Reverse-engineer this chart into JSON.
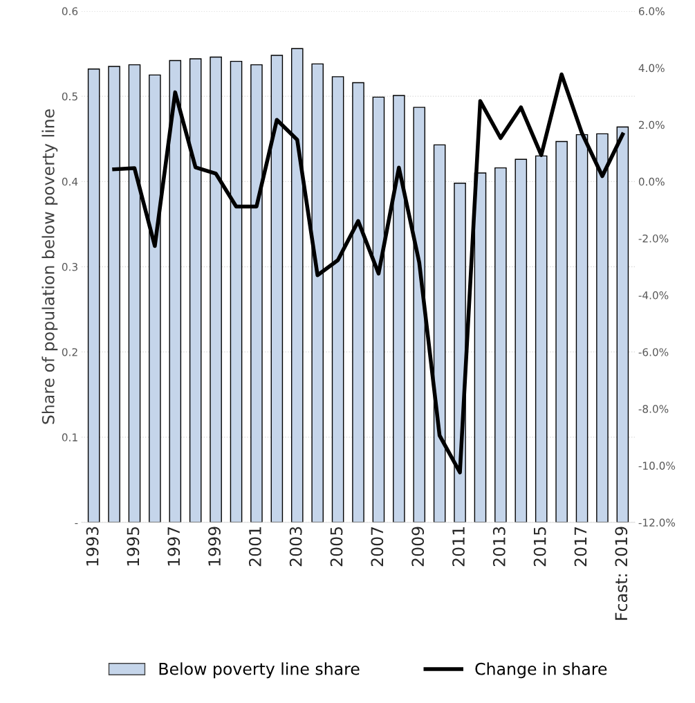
{
  "chart_data": {
    "type": "bar",
    "ylabel": "Share of population below poverty line",
    "categories": [
      "1993",
      null,
      "1995",
      null,
      "1997",
      null,
      "1999",
      null,
      "2001",
      null,
      "2003",
      null,
      "2005",
      null,
      "2007",
      null,
      "2009",
      null,
      "2011",
      null,
      "2013",
      null,
      "2015",
      null,
      "2017",
      null,
      "Fcast: 2019"
    ],
    "series": [
      {
        "name": "Below poverty line share",
        "color": "#c5d5ea",
        "values": [
          0.532,
          0.535,
          0.537,
          0.525,
          0.542,
          0.544,
          0.546,
          0.541,
          0.537,
          0.548,
          0.556,
          0.538,
          0.523,
          0.516,
          0.499,
          0.501,
          0.487,
          0.443,
          0.398,
          0.41,
          0.416,
          0.426,
          0.43,
          0.447,
          0.455,
          0.456,
          0.464
        ]
      },
      {
        "name": "Change in share",
        "type": "line",
        "axis": "y2",
        "color": "#000000",
        "values": [
          null,
          0.43,
          0.47,
          -2.27,
          3.14,
          0.5,
          0.28,
          -0.88,
          -0.88,
          2.17,
          1.47,
          -3.3,
          -2.77,
          -1.39,
          -3.24,
          0.49,
          -2.85,
          -8.94,
          -10.24,
          2.83,
          1.53,
          2.61,
          0.93,
          3.77,
          1.7,
          0.19,
          1.66
        ]
      }
    ],
    "ylim": [
      0,
      0.6
    ],
    "yticks": [
      {
        "value": 0,
        "label": "-"
      },
      0.1,
      0.2,
      0.3,
      0.4,
      0.5,
      0.6
    ],
    "y2lim": [
      -12,
      6
    ],
    "y2ticks": [
      {
        "value": -12,
        "label": "-12.0%"
      },
      {
        "value": -10,
        "label": "-10.0%"
      },
      {
        "value": -8,
        "label": "-8.0%"
      },
      {
        "value": -6,
        "label": "-6.0%"
      },
      {
        "value": -4,
        "label": "-4.0%"
      },
      {
        "value": -2,
        "label": "-2.0%"
      },
      {
        "value": 0,
        "label": "0.0%"
      },
      {
        "value": 2,
        "label": "2.0%"
      },
      {
        "value": 4,
        "label": "4.0%"
      },
      {
        "value": 6,
        "label": "6.0%"
      }
    ],
    "grid": "y",
    "legend": "bottom",
    "marker": "none",
    "line_style": "solid"
  }
}
